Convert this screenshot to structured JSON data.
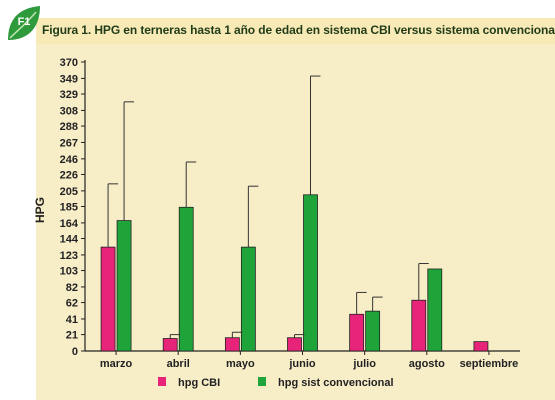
{
  "badge": {
    "label": "F1",
    "icon": "leaf-badge-icon",
    "color": "#2e9a3c"
  },
  "header": {
    "title": "Figura 1. HPG en terneras hasta 1 año de edad en sistema CBI versus sistema convencional."
  },
  "chart_data": {
    "type": "bar",
    "title": "",
    "xlabel": "",
    "ylabel": "HPG",
    "ylim": [
      0,
      370
    ],
    "yticks": [
      0,
      21,
      41,
      62,
      82,
      103,
      123,
      144,
      164,
      185,
      205,
      226,
      246,
      267,
      288,
      308,
      329,
      349,
      370
    ],
    "categories": [
      "marzo",
      "abril",
      "mayo",
      "junio",
      "julio",
      "agosto",
      "septiembre"
    ],
    "series": [
      {
        "name": "hpg  CBI",
        "color": "#e8237a",
        "values": [
          133,
          16,
          17,
          17,
          47,
          65,
          12
        ],
        "error_upper": [
          214,
          21,
          24,
          21,
          75,
          112,
          null
        ]
      },
      {
        "name": "hpg sist convencional",
        "color": "#1fa43a",
        "values": [
          167,
          184,
          133,
          200,
          51,
          105,
          null
        ],
        "error_upper": [
          319,
          242,
          211,
          352,
          69,
          null,
          null
        ]
      }
    ],
    "grid": false,
    "legend": "bottom"
  }
}
